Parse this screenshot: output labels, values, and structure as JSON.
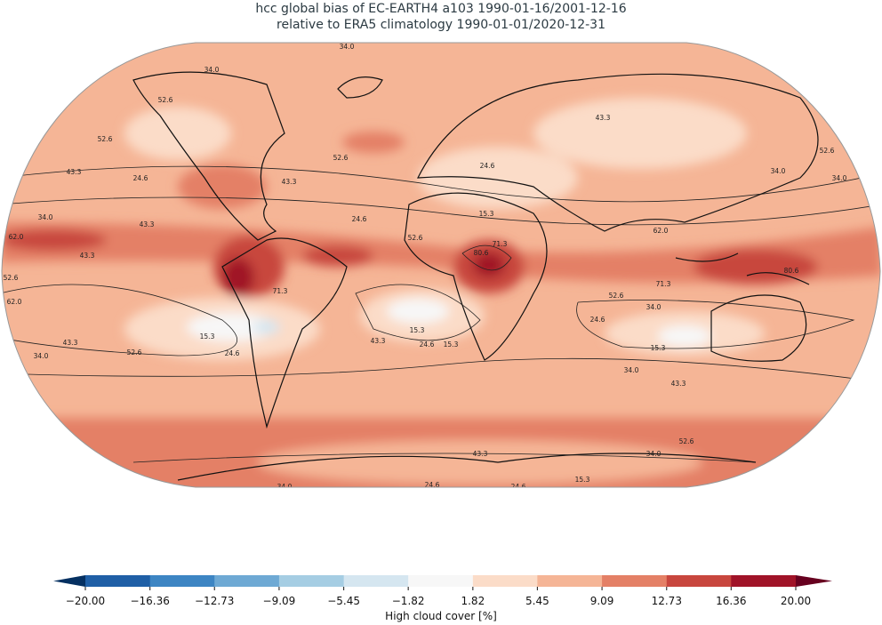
{
  "title": [
    "hcc global bias of EC-EARTH4 a103 1990-01-16/2001-12-16",
    "relative to ERA5 climatology 1990-01-01/2020-12-31"
  ],
  "map": {
    "contour_labels": [
      "34.0",
      "34.0",
      "52.6",
      "43.3",
      "52.6",
      "52.6",
      "24.6",
      "34.0",
      "52.6",
      "43.3",
      "24.6",
      "43.3",
      "34.0",
      "24.6",
      "15.3",
      "34.0",
      "43.3",
      "62.0",
      "52.6",
      "62.0",
      "43.3",
      "80.6",
      "71.3",
      "80.6",
      "71.3",
      "52.6",
      "34.0",
      "24.6",
      "15.3",
      "15.3",
      "24.6",
      "52.6",
      "43.3",
      "34.0",
      "15.3",
      "24.6",
      "15.3",
      "43.3",
      "34.0",
      "43.3",
      "52.6",
      "34.0",
      "43.3",
      "15.3",
      "24.6",
      "24.6",
      "34.0",
      "71.3",
      "62.0",
      "52.6"
    ]
  },
  "colorbar": {
    "label": "High cloud cover [%]",
    "ticks": [
      {
        "value": -20,
        "label": "−20.00"
      },
      {
        "value": -16.36,
        "label": "−16.36"
      },
      {
        "value": -12.73,
        "label": "−12.73"
      },
      {
        "value": -9.09,
        "label": "−9.09"
      },
      {
        "value": -5.45,
        "label": "−5.45"
      },
      {
        "value": -1.82,
        "label": "−1.82"
      },
      {
        "value": 1.82,
        "label": "1.82"
      },
      {
        "value": 5.45,
        "label": "5.45"
      },
      {
        "value": 9.09,
        "label": "9.09"
      },
      {
        "value": 12.73,
        "label": "12.73"
      },
      {
        "value": 16.36,
        "label": "16.36"
      },
      {
        "value": 20,
        "label": "20.00"
      }
    ],
    "colors": [
      "#1f5fa6",
      "#3d85c3",
      "#6ea9d4",
      "#a5cde3",
      "#d5e6f0",
      "#f7f7f7",
      "#fbdcc8",
      "#f5b596",
      "#e48066",
      "#c8463e",
      "#a01328"
    ],
    "extend_colors": [
      "#053061",
      "#67001f"
    ]
  }
}
